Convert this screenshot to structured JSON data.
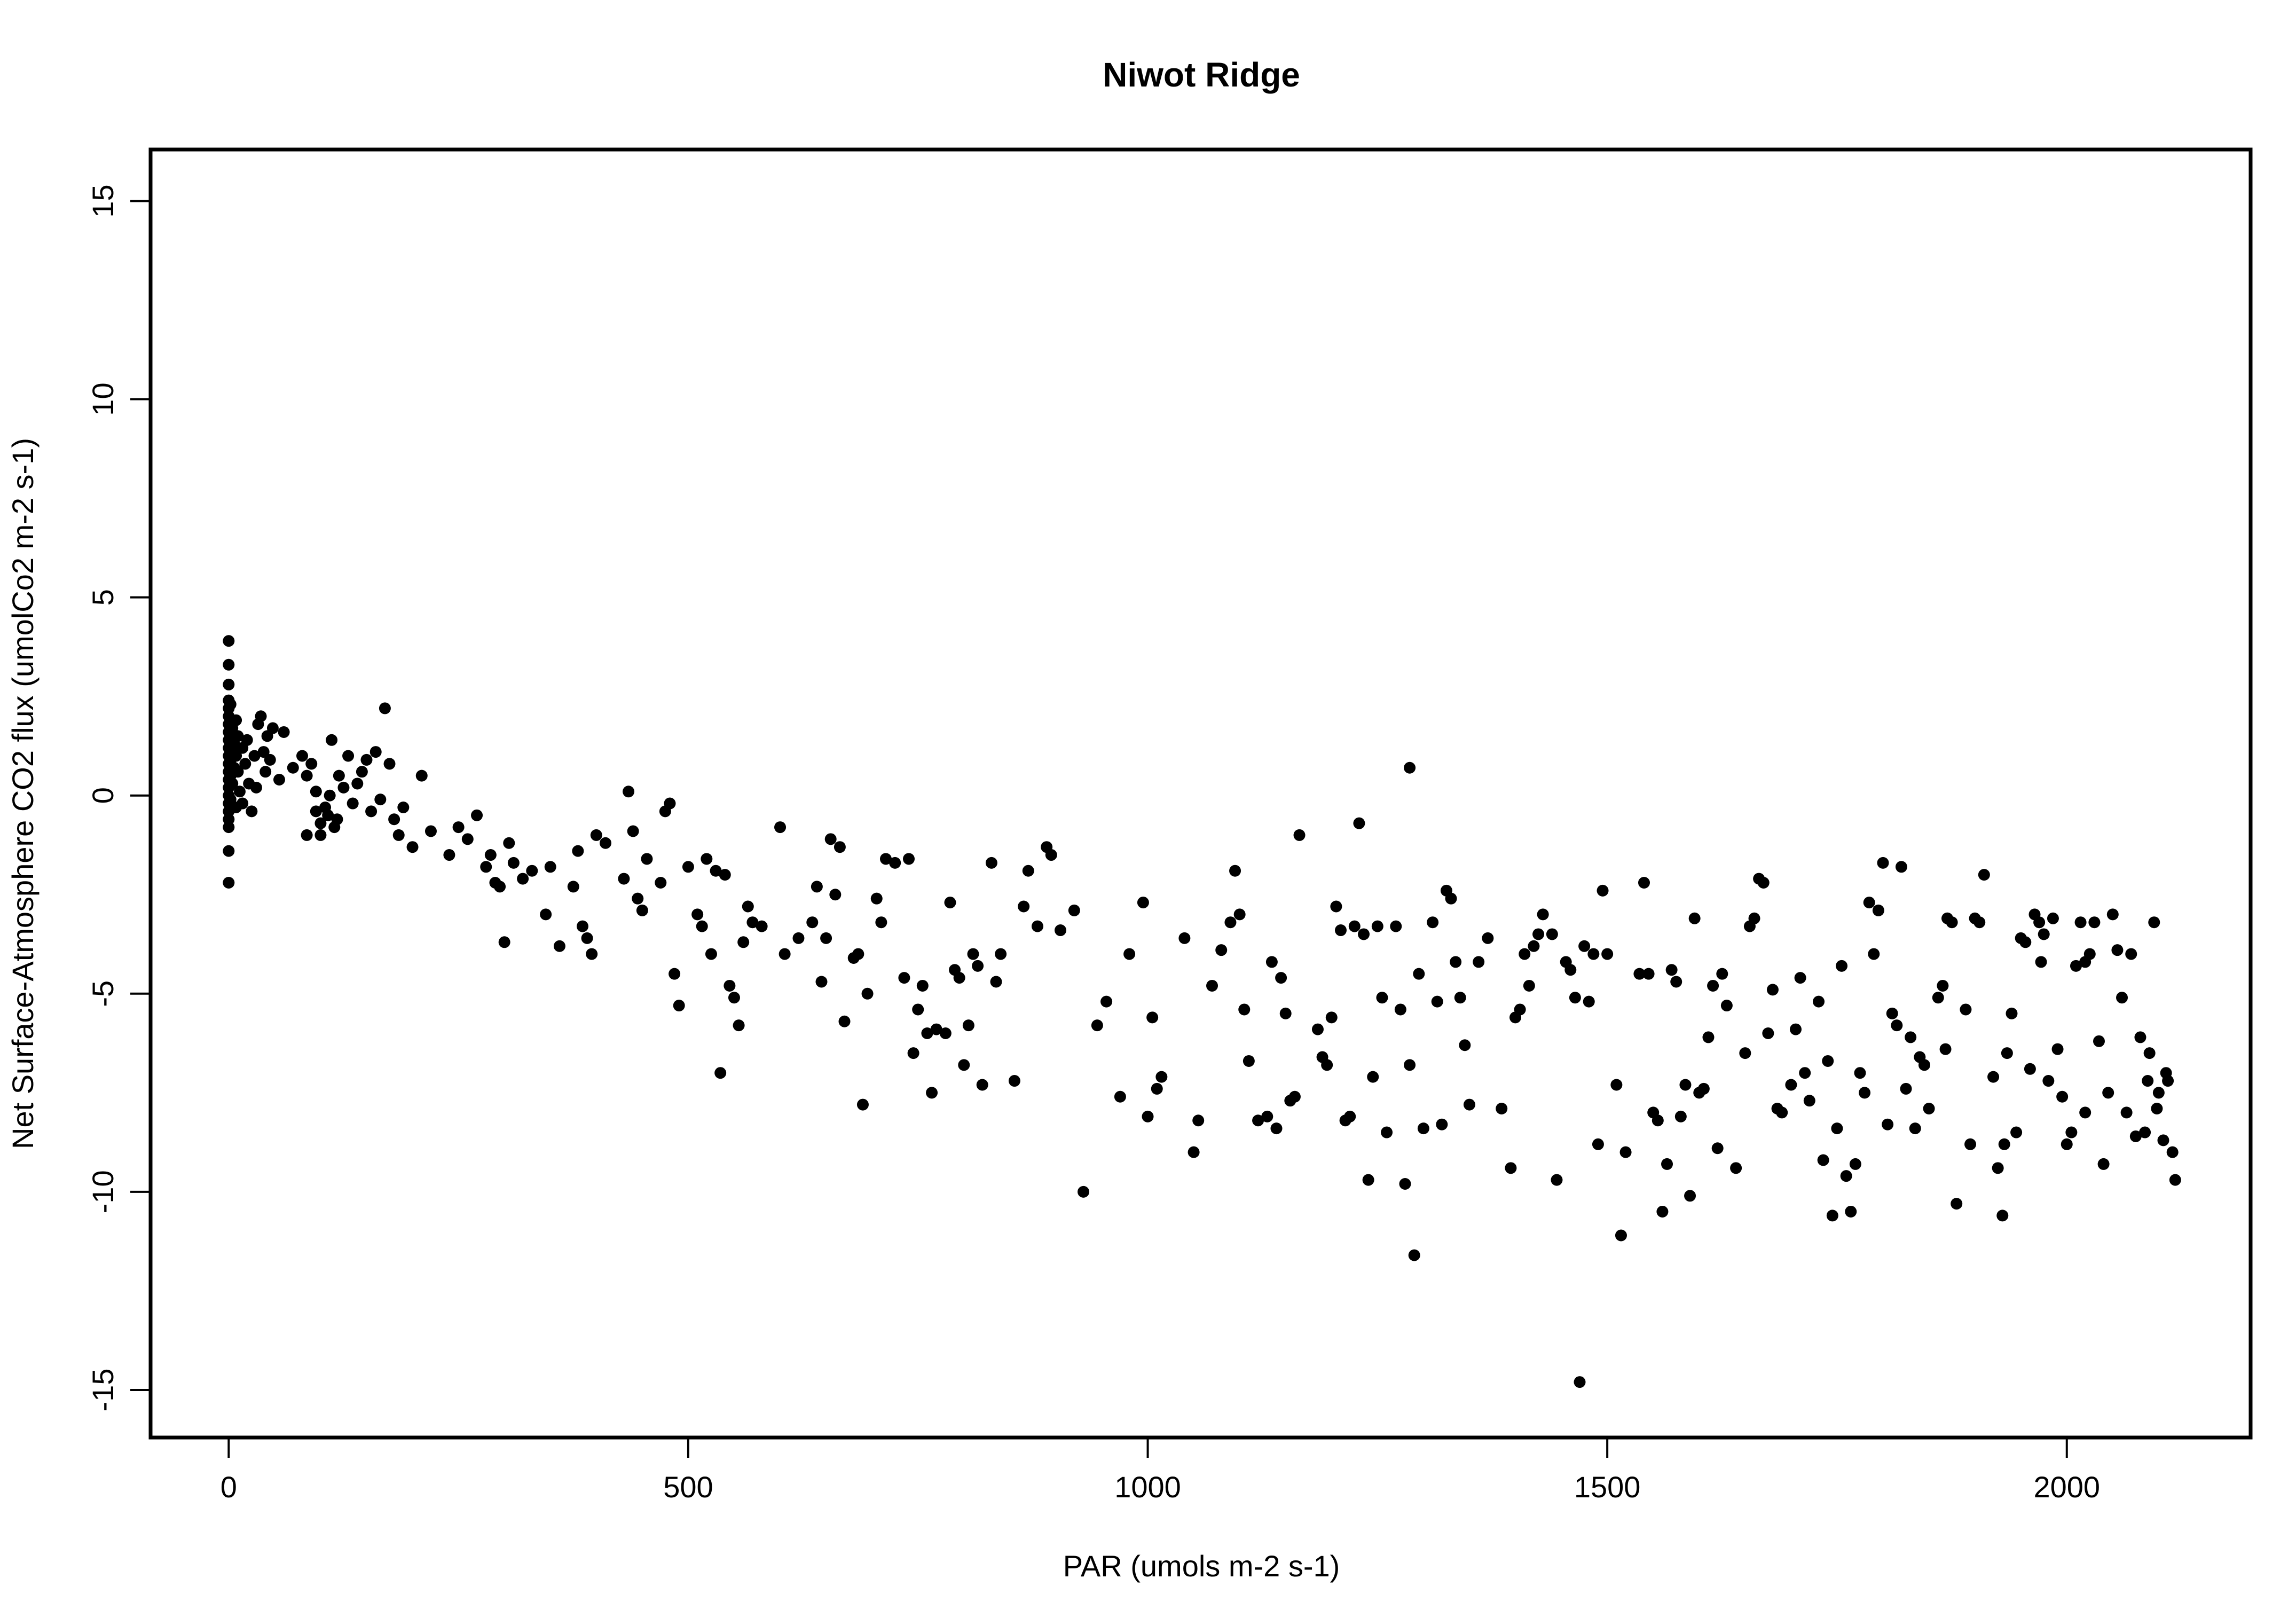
{
  "chart_data": {
    "type": "scatter",
    "title": "Niwot Ridge",
    "xlabel": "PAR (umols m-2 s-1)",
    "ylabel": "Net Surface-Atmosphere CO2 flux (umolCo2 m-2 s-1)",
    "xlim": [
      -85,
      2200
    ],
    "ylim": [
      -16.2,
      16.3
    ],
    "xticks": [
      0,
      500,
      1000,
      1500,
      2000
    ],
    "yticks": [
      -15,
      -10,
      -5,
      0,
      5,
      10,
      15
    ],
    "point_color": "#000000",
    "grid": false,
    "legend": "none",
    "points": [
      [
        0,
        3.9
      ],
      [
        0,
        3.3
      ],
      [
        0,
        2.8
      ],
      [
        0,
        2.4
      ],
      [
        0,
        2.2
      ],
      [
        0,
        2.0
      ],
      [
        0,
        1.8
      ],
      [
        0,
        1.6
      ],
      [
        0,
        1.4
      ],
      [
        0,
        1.2
      ],
      [
        0,
        1.0
      ],
      [
        0,
        0.8
      ],
      [
        0,
        0.6
      ],
      [
        0,
        0.4
      ],
      [
        0,
        0.2
      ],
      [
        0,
        0.0
      ],
      [
        0,
        -0.2
      ],
      [
        0,
        -0.4
      ],
      [
        0,
        -0.6
      ],
      [
        0,
        -0.8
      ],
      [
        0,
        -1.4
      ],
      [
        0,
        -2.2
      ],
      [
        2,
        2.3
      ],
      [
        2,
        1.5
      ],
      [
        2,
        0.9
      ],
      [
        2,
        0.5
      ],
      [
        2,
        -0.1
      ],
      [
        4,
        1.7
      ],
      [
        4,
        1.1
      ],
      [
        4,
        0.3
      ],
      [
        6,
        1.3
      ],
      [
        6,
        0.7
      ],
      [
        8,
        1.9
      ],
      [
        8,
        1.0
      ],
      [
        8,
        -0.3
      ],
      [
        10,
        1.5
      ],
      [
        10,
        0.6
      ],
      [
        12,
        0.1
      ],
      [
        15,
        1.2
      ],
      [
        15,
        -0.2
      ],
      [
        18,
        0.8
      ],
      [
        20,
        1.4
      ],
      [
        22,
        0.3
      ],
      [
        25,
        -0.4
      ],
      [
        28,
        1.0
      ],
      [
        30,
        0.2
      ],
      [
        32,
        1.8
      ],
      [
        35,
        2.0
      ],
      [
        38,
        1.1
      ],
      [
        40,
        0.6
      ],
      [
        42,
        1.5
      ],
      [
        45,
        0.9
      ],
      [
        48,
        1.7
      ],
      [
        55,
        0.4
      ],
      [
        60,
        1.6
      ],
      [
        70,
        0.7
      ],
      [
        80,
        1.0
      ],
      [
        85,
        0.5
      ],
      [
        85,
        -1.0
      ],
      [
        90,
        0.8
      ],
      [
        95,
        0.1
      ],
      [
        95,
        -0.4
      ],
      [
        100,
        -0.7
      ],
      [
        100,
        -1.0
      ],
      [
        105,
        -0.3
      ],
      [
        108,
        -0.5
      ],
      [
        110,
        0.0
      ],
      [
        112,
        1.4
      ],
      [
        115,
        -0.8
      ],
      [
        118,
        -0.6
      ],
      [
        120,
        0.5
      ],
      [
        125,
        0.2
      ],
      [
        130,
        1.0
      ],
      [
        135,
        -0.2
      ],
      [
        140,
        0.3
      ],
      [
        145,
        0.6
      ],
      [
        150,
        0.9
      ],
      [
        155,
        -0.4
      ],
      [
        160,
        1.1
      ],
      [
        165,
        -0.1
      ],
      [
        170,
        2.2
      ],
      [
        175,
        0.8
      ],
      [
        180,
        -0.6
      ],
      [
        185,
        -1.0
      ],
      [
        190,
        -0.3
      ],
      [
        200,
        -1.3
      ],
      [
        210,
        0.5
      ],
      [
        220,
        -0.9
      ],
      [
        240,
        -1.5
      ],
      [
        250,
        -0.8
      ],
      [
        260,
        -1.1
      ],
      [
        270,
        -0.5
      ],
      [
        280,
        -1.8
      ],
      [
        285,
        -1.5
      ],
      [
        290,
        -2.2
      ],
      [
        295,
        -2.3
      ],
      [
        300,
        -3.7
      ],
      [
        305,
        -1.2
      ],
      [
        310,
        -1.7
      ],
      [
        320,
        -2.1
      ],
      [
        330,
        -1.9
      ],
      [
        345,
        -3.0
      ],
      [
        350,
        -1.8
      ],
      [
        360,
        -3.8
      ],
      [
        375,
        -2.3
      ],
      [
        380,
        -1.4
      ],
      [
        385,
        -3.3
      ],
      [
        390,
        -3.6
      ],
      [
        395,
        -4.0
      ],
      [
        400,
        -1.0
      ],
      [
        410,
        -1.2
      ],
      [
        430,
        -2.1
      ],
      [
        435,
        0.1
      ],
      [
        440,
        -0.9
      ],
      [
        445,
        -2.6
      ],
      [
        450,
        -2.9
      ],
      [
        455,
        -1.6
      ],
      [
        470,
        -2.2
      ],
      [
        475,
        -0.4
      ],
      [
        480,
        -0.2
      ],
      [
        485,
        -4.5
      ],
      [
        490,
        -5.3
      ],
      [
        500,
        -1.8
      ],
      [
        510,
        -3.0
      ],
      [
        515,
        -3.3
      ],
      [
        520,
        -1.6
      ],
      [
        525,
        -4.0
      ],
      [
        530,
        -1.9
      ],
      [
        535,
        -7.0
      ],
      [
        540,
        -2.0
      ],
      [
        545,
        -4.8
      ],
      [
        550,
        -5.1
      ],
      [
        555,
        -5.8
      ],
      [
        560,
        -3.7
      ],
      [
        565,
        -2.8
      ],
      [
        570,
        -3.2
      ],
      [
        580,
        -3.3
      ],
      [
        600,
        -0.8
      ],
      [
        605,
        -4.0
      ],
      [
        620,
        -3.6
      ],
      [
        635,
        -3.2
      ],
      [
        640,
        -2.3
      ],
      [
        645,
        -4.7
      ],
      [
        650,
        -3.6
      ],
      [
        655,
        -1.1
      ],
      [
        660,
        -2.5
      ],
      [
        665,
        -1.3
      ],
      [
        670,
        -5.7
      ],
      [
        680,
        -4.1
      ],
      [
        685,
        -4.0
      ],
      [
        690,
        -7.8
      ],
      [
        695,
        -5.0
      ],
      [
        705,
        -2.6
      ],
      [
        710,
        -3.2
      ],
      [
        715,
        -1.6
      ],
      [
        725,
        -1.7
      ],
      [
        735,
        -4.6
      ],
      [
        740,
        -1.6
      ],
      [
        745,
        -6.5
      ],
      [
        750,
        -5.4
      ],
      [
        755,
        -4.8
      ],
      [
        760,
        -6.0
      ],
      [
        765,
        -7.5
      ],
      [
        770,
        -5.9
      ],
      [
        780,
        -6.0
      ],
      [
        785,
        -2.7
      ],
      [
        790,
        -4.4
      ],
      [
        795,
        -4.6
      ],
      [
        800,
        -6.8
      ],
      [
        805,
        -5.8
      ],
      [
        810,
        -4.0
      ],
      [
        815,
        -4.3
      ],
      [
        820,
        -7.3
      ],
      [
        830,
        -1.7
      ],
      [
        835,
        -4.7
      ],
      [
        840,
        -4.0
      ],
      [
        855,
        -7.2
      ],
      [
        865,
        -2.8
      ],
      [
        870,
        -1.9
      ],
      [
        880,
        -3.3
      ],
      [
        890,
        -1.3
      ],
      [
        895,
        -1.5
      ],
      [
        905,
        -3.4
      ],
      [
        920,
        -2.9
      ],
      [
        930,
        -10.0
      ],
      [
        945,
        -5.8
      ],
      [
        955,
        -5.2
      ],
      [
        970,
        -7.6
      ],
      [
        980,
        -4.0
      ],
      [
        995,
        -2.7
      ],
      [
        1000,
        -8.1
      ],
      [
        1005,
        -5.6
      ],
      [
        1010,
        -7.4
      ],
      [
        1015,
        -7.1
      ],
      [
        1040,
        -3.6
      ],
      [
        1050,
        -9.0
      ],
      [
        1055,
        -8.2
      ],
      [
        1070,
        -4.8
      ],
      [
        1080,
        -3.9
      ],
      [
        1090,
        -3.2
      ],
      [
        1095,
        -1.9
      ],
      [
        1100,
        -3.0
      ],
      [
        1105,
        -5.4
      ],
      [
        1110,
        -6.7
      ],
      [
        1120,
        -8.2
      ],
      [
        1130,
        -8.1
      ],
      [
        1135,
        -4.2
      ],
      [
        1140,
        -8.4
      ],
      [
        1145,
        -4.6
      ],
      [
        1150,
        -5.5
      ],
      [
        1155,
        -7.7
      ],
      [
        1160,
        -7.6
      ],
      [
        1165,
        -1.0
      ],
      [
        1185,
        -5.9
      ],
      [
        1190,
        -6.6
      ],
      [
        1195,
        -6.8
      ],
      [
        1200,
        -5.6
      ],
      [
        1205,
        -2.8
      ],
      [
        1210,
        -3.4
      ],
      [
        1215,
        -8.2
      ],
      [
        1220,
        -8.1
      ],
      [
        1225,
        -3.3
      ],
      [
        1230,
        -0.7
      ],
      [
        1235,
        -3.5
      ],
      [
        1240,
        -9.7
      ],
      [
        1245,
        -7.1
      ],
      [
        1250,
        -3.3
      ],
      [
        1255,
        -5.1
      ],
      [
        1260,
        -8.5
      ],
      [
        1270,
        -3.3
      ],
      [
        1275,
        -5.4
      ],
      [
        1280,
        -9.8
      ],
      [
        1285,
        -6.8
      ],
      [
        1290,
        -11.6
      ],
      [
        1295,
        -4.5
      ],
      [
        1300,
        -8.4
      ],
      [
        1310,
        -3.2
      ],
      [
        1315,
        -5.2
      ],
      [
        1320,
        -8.3
      ],
      [
        1325,
        -2.4
      ],
      [
        1330,
        -2.6
      ],
      [
        1335,
        -4.2
      ],
      [
        1340,
        -5.1
      ],
      [
        1345,
        -6.3
      ],
      [
        1350,
        -7.8
      ],
      [
        1360,
        -4.2
      ],
      [
        1370,
        -3.6
      ],
      [
        1385,
        -7.9
      ],
      [
        1395,
        -9.4
      ],
      [
        1400,
        -5.6
      ],
      [
        1405,
        -5.4
      ],
      [
        1410,
        -4.0
      ],
      [
        1415,
        -4.8
      ],
      [
        1420,
        -3.8
      ],
      [
        1425,
        -3.5
      ],
      [
        1430,
        -3.0
      ],
      [
        1440,
        -3.5
      ],
      [
        1445,
        -9.7
      ],
      [
        1455,
        -4.2
      ],
      [
        1460,
        -4.4
      ],
      [
        1465,
        -5.1
      ],
      [
        1470,
        -14.8
      ],
      [
        1475,
        -3.8
      ],
      [
        1480,
        -5.2
      ],
      [
        1485,
        -4.0
      ],
      [
        1490,
        -8.8
      ],
      [
        1495,
        -2.4
      ],
      [
        1500,
        -4.0
      ],
      [
        1510,
        -7.3
      ],
      [
        1515,
        -11.1
      ],
      [
        1520,
        -9.0
      ],
      [
        1535,
        -4.5
      ],
      [
        1540,
        -2.2
      ],
      [
        1545,
        -4.5
      ],
      [
        1550,
        -8.0
      ],
      [
        1555,
        -8.2
      ],
      [
        1560,
        -10.5
      ],
      [
        1565,
        -9.3
      ],
      [
        1570,
        -4.4
      ],
      [
        1575,
        -4.7
      ],
      [
        1580,
        -8.1
      ],
      [
        1585,
        -7.3
      ],
      [
        1590,
        -10.1
      ],
      [
        1595,
        -3.1
      ],
      [
        1600,
        -7.5
      ],
      [
        1605,
        -7.4
      ],
      [
        1610,
        -6.1
      ],
      [
        1615,
        -4.8
      ],
      [
        1620,
        -8.9
      ],
      [
        1625,
        -4.5
      ],
      [
        1630,
        -5.3
      ],
      [
        1640,
        -9.4
      ],
      [
        1650,
        -6.5
      ],
      [
        1655,
        -3.3
      ],
      [
        1660,
        -3.1
      ],
      [
        1665,
        -2.1
      ],
      [
        1670,
        -2.2
      ],
      [
        1675,
        -6.0
      ],
      [
        1680,
        -4.9
      ],
      [
        1685,
        -7.9
      ],
      [
        1690,
        -8.0
      ],
      [
        1700,
        -7.3
      ],
      [
        1705,
        -5.9
      ],
      [
        1710,
        -4.6
      ],
      [
        1715,
        -7.0
      ],
      [
        1720,
        -7.7
      ],
      [
        1730,
        -5.2
      ],
      [
        1735,
        -9.2
      ],
      [
        1740,
        -6.7
      ],
      [
        1745,
        -10.6
      ],
      [
        1750,
        -8.4
      ],
      [
        1755,
        -4.3
      ],
      [
        1760,
        -9.6
      ],
      [
        1765,
        -10.5
      ],
      [
        1770,
        -9.3
      ],
      [
        1775,
        -7.0
      ],
      [
        1780,
        -7.5
      ],
      [
        1785,
        -2.7
      ],
      [
        1790,
        -4.0
      ],
      [
        1795,
        -2.9
      ],
      [
        1800,
        -1.7
      ],
      [
        1805,
        -8.3
      ],
      [
        1810,
        -5.5
      ],
      [
        1815,
        -5.8
      ],
      [
        1820,
        -1.8
      ],
      [
        1825,
        -7.4
      ],
      [
        1830,
        -6.1
      ],
      [
        1835,
        -8.4
      ],
      [
        1840,
        -6.6
      ],
      [
        1845,
        -6.8
      ],
      [
        1850,
        -7.9
      ],
      [
        1860,
        -5.1
      ],
      [
        1865,
        -4.8
      ],
      [
        1870,
        -3.1
      ],
      [
        1875,
        -3.2
      ],
      [
        1880,
        -10.3
      ],
      [
        1890,
        -5.4
      ],
      [
        1895,
        -8.8
      ],
      [
        1900,
        -3.1
      ],
      [
        1905,
        -3.2
      ],
      [
        1910,
        -2.0
      ],
      [
        1920,
        -7.1
      ],
      [
        1925,
        -9.4
      ],
      [
        1930,
        -10.6
      ],
      [
        1935,
        -6.5
      ],
      [
        1940,
        -5.5
      ],
      [
        1945,
        -8.5
      ],
      [
        1950,
        -3.6
      ],
      [
        1955,
        -3.7
      ],
      [
        1960,
        -6.9
      ],
      [
        1965,
        -3.0
      ],
      [
        1970,
        -3.2
      ],
      [
        1975,
        -3.5
      ],
      [
        1980,
        -7.2
      ],
      [
        1985,
        -3.1
      ],
      [
        1990,
        -6.4
      ],
      [
        1995,
        -7.6
      ],
      [
        2000,
        -8.8
      ],
      [
        2005,
        -8.5
      ],
      [
        2010,
        -4.3
      ],
      [
        2015,
        -3.2
      ],
      [
        2020,
        -4.2
      ],
      [
        2025,
        -4.0
      ],
      [
        2030,
        -3.2
      ],
      [
        2035,
        -6.2
      ],
      [
        2040,
        -9.3
      ],
      [
        2045,
        -7.5
      ],
      [
        2050,
        -3.0
      ],
      [
        2055,
        -3.9
      ],
      [
        2060,
        -5.1
      ],
      [
        2065,
        -8.0
      ],
      [
        2070,
        -4.0
      ],
      [
        2075,
        -8.6
      ],
      [
        2080,
        -6.1
      ],
      [
        2085,
        -8.5
      ],
      [
        2090,
        -6.5
      ],
      [
        2095,
        -3.2
      ],
      [
        2100,
        -7.5
      ],
      [
        2105,
        -8.7
      ],
      [
        2110,
        -7.2
      ],
      [
        2115,
        -9.0
      ],
      [
        2118,
        -9.7
      ],
      [
        2108,
        -7.0
      ],
      [
        2098,
        -7.9
      ],
      [
        2088,
        -7.2
      ],
      [
        1285,
        0.7
      ],
      [
        2020,
        -8.0
      ],
      [
        1972,
        -4.2
      ],
      [
        1932,
        -8.8
      ],
      [
        1868,
        -6.4
      ]
    ]
  }
}
